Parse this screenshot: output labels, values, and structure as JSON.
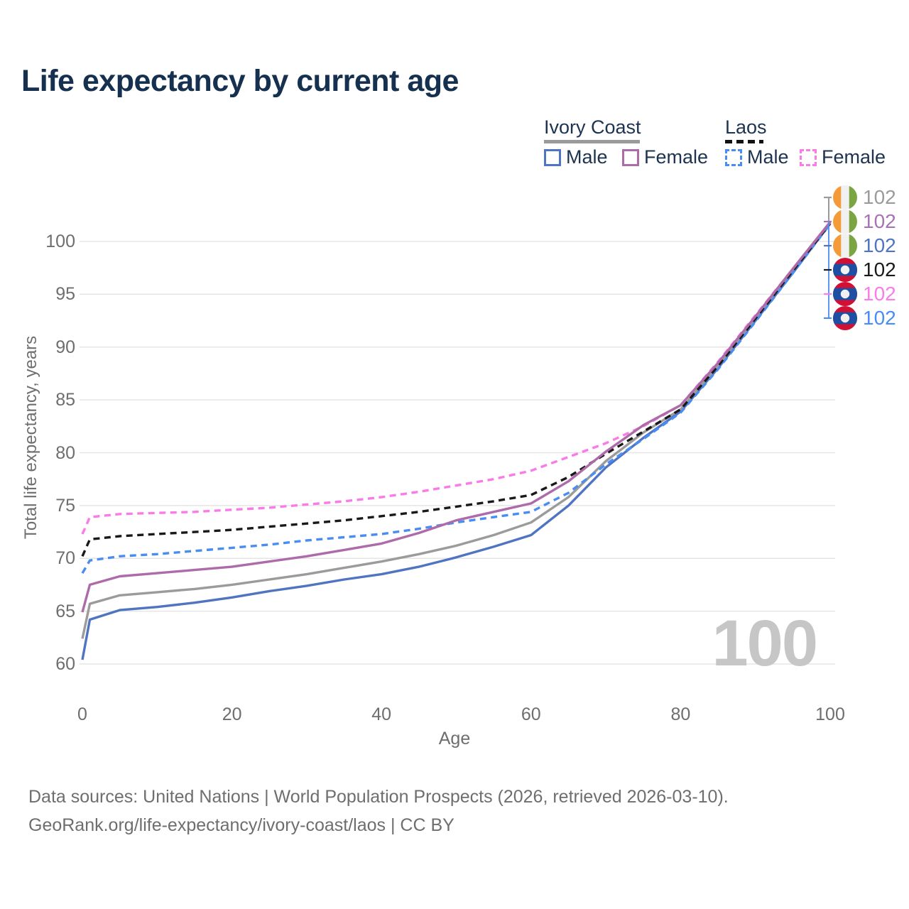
{
  "title": "Life expectancy by current age",
  "watermark": "100",
  "legend": {
    "groups": [
      {
        "label": "Ivory Coast",
        "line_style": "solid",
        "line_color": "#9A9A9A",
        "items": [
          {
            "label": "Male",
            "color": "#4F74C2",
            "dashed": false
          },
          {
            "label": "Female",
            "color": "#AD6BAA",
            "dashed": false
          }
        ]
      },
      {
        "label": "Laos",
        "line_style": "dashed",
        "line_color": "#111111",
        "items": [
          {
            "label": "Male",
            "color": "#4A8DF2",
            "dashed": true
          },
          {
            "label": "Female",
            "color": "#FA7BE8",
            "dashed": true
          }
        ]
      }
    ]
  },
  "chart_data": {
    "type": "line",
    "title": "Life expectancy by current age",
    "xlabel": "Age",
    "ylabel": "Total life expectancy, years",
    "x_ticks": [
      0,
      20,
      40,
      60,
      80,
      100
    ],
    "y_ticks": [
      60,
      65,
      70,
      75,
      80,
      85,
      90,
      95,
      100
    ],
    "xlim": [
      0,
      100
    ],
    "ylim": [
      58,
      103.5
    ],
    "grid": "horizontal",
    "legend_position": "top-right",
    "ages": [
      0,
      1,
      5,
      10,
      15,
      20,
      25,
      30,
      35,
      40,
      45,
      50,
      55,
      60,
      65,
      70,
      75,
      80,
      85,
      90,
      95,
      100
    ],
    "series": [
      {
        "name": "Ivory Coast — Male",
        "country": "Ivory Coast",
        "sex": "Male",
        "color": "#4F74C2",
        "dashed": false,
        "end_value": 102,
        "values": [
          60.4,
          64.2,
          65.1,
          65.4,
          65.8,
          66.3,
          66.9,
          67.4,
          68.0,
          68.5,
          69.2,
          70.1,
          71.1,
          72.2,
          75.0,
          78.6,
          81.4,
          83.9,
          88.0,
          92.5,
          97.0,
          101.7
        ]
      },
      {
        "name": "Ivory Coast — Both sexes",
        "country": "Ivory Coast",
        "sex": "All",
        "color": "#9B9B9B",
        "dashed": false,
        "end_value": 102,
        "values": [
          62.4,
          65.7,
          66.5,
          66.8,
          67.1,
          67.5,
          68.0,
          68.5,
          69.1,
          69.7,
          70.4,
          71.2,
          72.2,
          73.4,
          75.8,
          79.2,
          81.9,
          84.1,
          88.2,
          92.7,
          97.2,
          101.75
        ]
      },
      {
        "name": "Laos — Male",
        "country": "Laos",
        "sex": "Male",
        "color": "#4A8DF2",
        "dashed": true,
        "end_value": 102,
        "values": [
          68.6,
          69.8,
          70.2,
          70.4,
          70.7,
          71.0,
          71.3,
          71.7,
          72.0,
          72.3,
          72.8,
          73.4,
          73.9,
          74.4,
          76.2,
          78.9,
          81.3,
          83.8,
          87.9,
          92.4,
          97.0,
          101.65
        ]
      },
      {
        "name": "Laos — Both sexes",
        "country": "Laos",
        "sex": "All",
        "color": "#191919",
        "dashed": true,
        "end_value": 102,
        "values": [
          70.2,
          71.8,
          72.1,
          72.3,
          72.5,
          72.7,
          73.0,
          73.3,
          73.6,
          74.0,
          74.4,
          74.9,
          75.4,
          76.0,
          77.7,
          79.9,
          82.0,
          84.1,
          88.2,
          92.7,
          97.2,
          101.7
        ]
      },
      {
        "name": "Laos — Female",
        "country": "Laos",
        "sex": "Female",
        "color": "#FA7BE8",
        "dashed": true,
        "end_value": 102,
        "values": [
          72.3,
          73.9,
          74.2,
          74.3,
          74.4,
          74.6,
          74.8,
          75.1,
          75.4,
          75.8,
          76.3,
          76.9,
          77.5,
          78.3,
          79.6,
          80.9,
          82.5,
          84.5,
          88.6,
          93.0,
          97.4,
          101.8
        ]
      },
      {
        "name": "Ivory Coast — Female",
        "country": "Ivory Coast",
        "sex": "Female",
        "color": "#AD6BAA",
        "dashed": false,
        "end_value": 102,
        "values": [
          64.9,
          67.5,
          68.3,
          68.6,
          68.9,
          69.2,
          69.7,
          70.2,
          70.8,
          71.4,
          72.4,
          73.6,
          74.4,
          75.2,
          77.3,
          80.1,
          82.6,
          84.5,
          88.5,
          92.9,
          97.4,
          101.85
        ]
      }
    ]
  },
  "end_labels": [
    {
      "flag": "ivory-coast",
      "value": "102",
      "color": "#9B9B9B"
    },
    {
      "flag": "ivory-coast",
      "value": "102",
      "color": "#A873B5"
    },
    {
      "flag": "ivory-coast",
      "value": "102",
      "color": "#4F74C2"
    },
    {
      "flag": "laos",
      "value": "102",
      "color": "#1A1A1A"
    },
    {
      "flag": "laos",
      "value": "102",
      "color": "#FC7BEA"
    },
    {
      "flag": "laos",
      "value": "102",
      "color": "#4A8DF2"
    }
  ],
  "caption": {
    "line1": "Data sources: United Nations | World Population Prospects (2026, retrieved 2026-03-10).",
    "line2": "GeoRank.org/life-expectancy/ivory-coast/laos | CC BY"
  }
}
